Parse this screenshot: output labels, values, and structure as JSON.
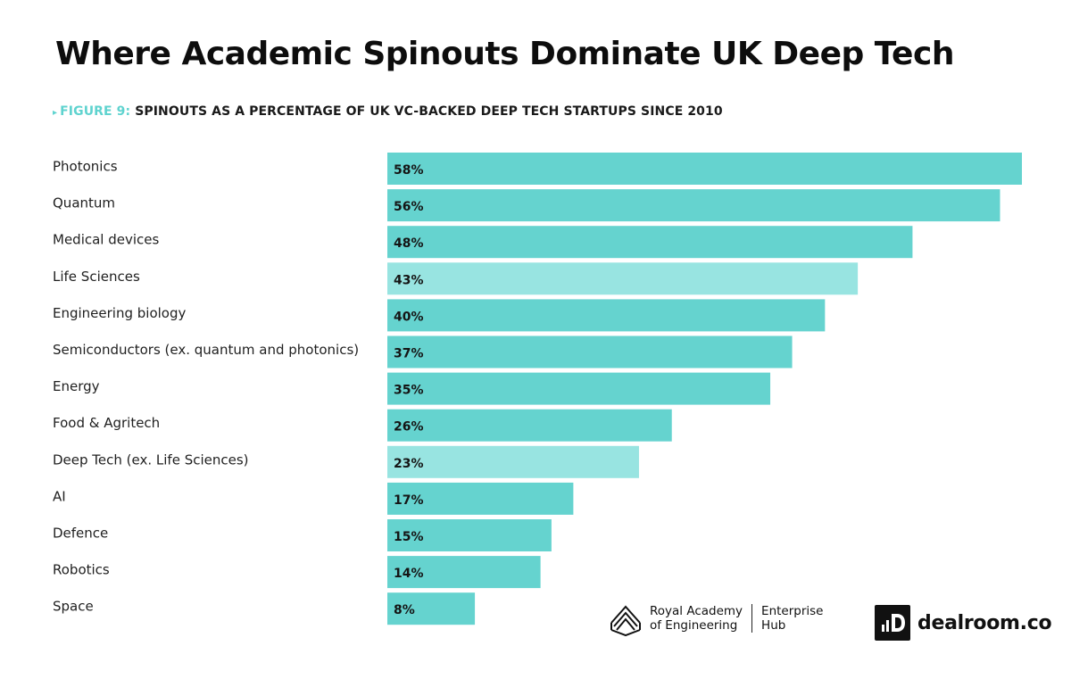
{
  "header": {
    "title": "Where Academic Spinouts Dominate UK Deep Tech",
    "figure_prefix": "FIGURE 9:",
    "subtitle": "SPINOUTS AS A PERCENTAGE OF UK VC-BACKED DEEP TECH STARTUPS SINCE 2010"
  },
  "colors": {
    "bar": "#65d3cf",
    "bar_highlight": "#98e4e1",
    "accent": "#5fd3cf"
  },
  "chart_data": {
    "type": "bar",
    "orientation": "horizontal",
    "categories": [
      "Photonics",
      "Quantum",
      "Medical devices",
      "Life Sciences",
      "Engineering biology",
      "Semiconductors (ex. quantum and photonics)",
      "Energy",
      "Food & Agritech",
      "Deep Tech (ex. Life Sciences)",
      "AI",
      "Defence",
      "Robotics",
      "Space"
    ],
    "values": [
      58,
      56,
      48,
      43,
      40,
      37,
      35,
      26,
      23,
      17,
      15,
      14,
      8
    ],
    "value_labels": [
      "58%",
      "56%",
      "48%",
      "43%",
      "40%",
      "37%",
      "35%",
      "26%",
      "23%",
      "17%",
      "15%",
      "14%",
      "8%"
    ],
    "highlighted": [
      "Life Sciences",
      "Deep Tech (ex. Life Sciences)"
    ],
    "unit": "%",
    "xlim": [
      0,
      58
    ],
    "grid": false,
    "title": "Where Academic Spinouts Dominate UK Deep Tech",
    "subtitle": "FIGURE 9: SPINOUTS AS A PERCENTAGE OF UK VC-BACKED DEEP TECH STARTUPS SINCE 2010",
    "xlabel": "",
    "ylabel": ""
  },
  "logos": {
    "rae_line1": "Royal Academy",
    "rae_line2": "of Engineering",
    "hub_line1": "Enterprise",
    "hub_line2": "Hub",
    "dealroom": "dealroom.co"
  }
}
